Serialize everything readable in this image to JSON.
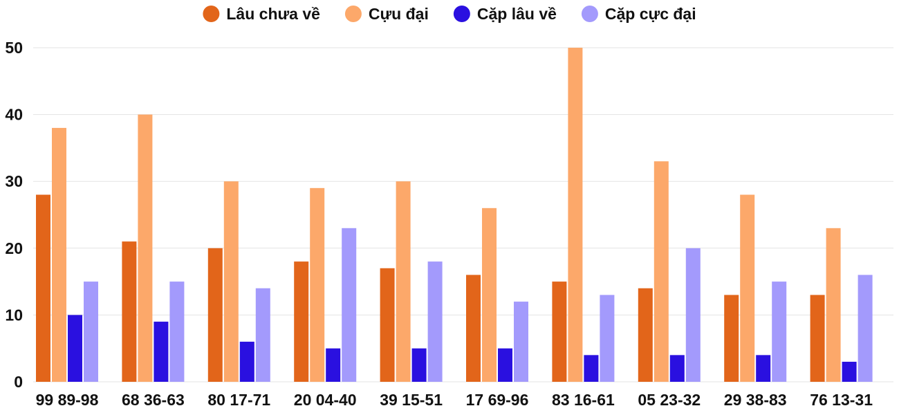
{
  "chart_data": {
    "type": "bar",
    "categories": [
      "99 89-98",
      "68 36-63",
      "80 17-71",
      "20 04-40",
      "39 15-51",
      "17 69-96",
      "83 16-61",
      "05 23-32",
      "29 38-83",
      "76 13-31"
    ],
    "series": [
      {
        "name": "Lâu chưa về",
        "color": "#e2651a",
        "values": [
          28,
          21,
          20,
          18,
          17,
          16,
          15,
          14,
          13,
          13
        ]
      },
      {
        "name": "Cựu đại",
        "color": "#fca86a",
        "values": [
          38,
          40,
          30,
          29,
          30,
          26,
          50,
          33,
          28,
          23
        ]
      },
      {
        "name": "Cặp lâu về",
        "color": "#2a10e0",
        "values": [
          10,
          9,
          6,
          5,
          5,
          5,
          4,
          4,
          4,
          3
        ]
      },
      {
        "name": "Cặp cực đại",
        "color": "#a39afc",
        "values": [
          15,
          15,
          14,
          23,
          18,
          12,
          13,
          20,
          15,
          16
        ]
      }
    ],
    "ylim": [
      0,
      50
    ],
    "yticks": [
      0,
      10,
      20,
      30,
      40,
      50
    ],
    "grid": true,
    "legend_position": "top-center"
  }
}
